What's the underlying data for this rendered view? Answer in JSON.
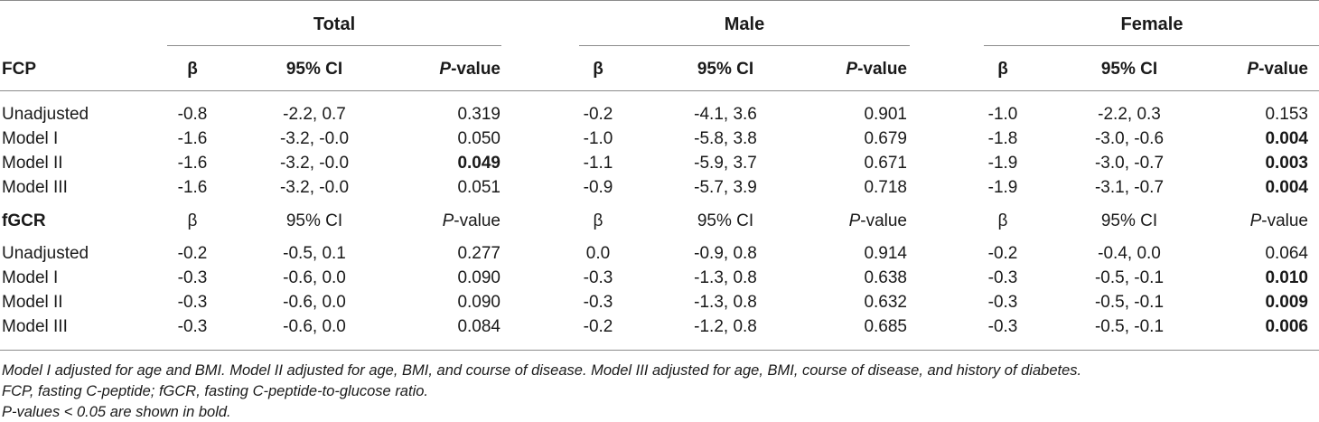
{
  "groups": [
    "Total",
    "Male",
    "Female"
  ],
  "sections": [
    {
      "label": "FCP",
      "header": {
        "beta": "β",
        "ci": "95% CI",
        "p_prefix": "P",
        "p_suffix": "-value"
      },
      "rows": [
        {
          "name": "Unadjusted",
          "cells": [
            [
              "-0.8",
              "-2.2, 0.7",
              "0.319"
            ],
            [
              "-0.2",
              "-4.1, 3.6",
              "0.901"
            ],
            [
              "-1.0",
              "-2.2, 0.3",
              "0.153"
            ]
          ]
        },
        {
          "name": "Model I",
          "cells": [
            [
              "-1.6",
              "-3.2, -0.0",
              "0.050"
            ],
            [
              "-1.0",
              "-5.8, 3.8",
              "0.679"
            ],
            [
              "-1.8",
              "-3.0, -0.6",
              "0.004"
            ]
          ]
        },
        {
          "name": "Model II",
          "cells": [
            [
              "-1.6",
              "-3.2, -0.0",
              "0.049"
            ],
            [
              "-1.1",
              "-5.9, 3.7",
              "0.671"
            ],
            [
              "-1.9",
              "-3.0, -0.7",
              "0.003"
            ]
          ]
        },
        {
          "name": "Model III",
          "cells": [
            [
              "-1.6",
              "-3.2, -0.0",
              "0.051"
            ],
            [
              "-0.9",
              "-5.7, 3.9",
              "0.718"
            ],
            [
              "-1.9",
              "-3.1, -0.7",
              "0.004"
            ]
          ]
        }
      ]
    },
    {
      "label": "fGCR",
      "header": {
        "beta": "β",
        "ci": "95% CI",
        "p_prefix": "P",
        "p_suffix": "-value"
      },
      "rows": [
        {
          "name": "Unadjusted",
          "cells": [
            [
              "-0.2",
              "-0.5, 0.1",
              "0.277"
            ],
            [
              "0.0",
              "-0.9, 0.8",
              "0.914"
            ],
            [
              "-0.2",
              "-0.4, 0.0",
              "0.064"
            ]
          ]
        },
        {
          "name": "Model I",
          "cells": [
            [
              "-0.3",
              "-0.6, 0.0",
              "0.090"
            ],
            [
              "-0.3",
              "-1.3, 0.8",
              "0.638"
            ],
            [
              "-0.3",
              "-0.5, -0.1",
              "0.010"
            ]
          ]
        },
        {
          "name": "Model II",
          "cells": [
            [
              "-0.3",
              "-0.6, 0.0",
              "0.090"
            ],
            [
              "-0.3",
              "-1.3, 0.8",
              "0.632"
            ],
            [
              "-0.3",
              "-0.5, -0.1",
              "0.009"
            ]
          ]
        },
        {
          "name": "Model III",
          "cells": [
            [
              "-0.3",
              "-0.6, 0.0",
              "0.084"
            ],
            [
              "-0.2",
              "-1.2, 0.8",
              "0.685"
            ],
            [
              "-0.3",
              "-0.5, -0.1",
              "0.006"
            ]
          ]
        }
      ]
    }
  ],
  "footnotes": [
    "Model I adjusted for age and BMI. Model II adjusted for age, BMI, and course of disease. Model III adjusted for age, BMI, course of disease, and history of diabetes.",
    "FCP, fasting C-peptide; fGCR, fasting C-peptide-to-glucose ratio.",
    "P-values < 0.05 are shown in bold."
  ]
}
